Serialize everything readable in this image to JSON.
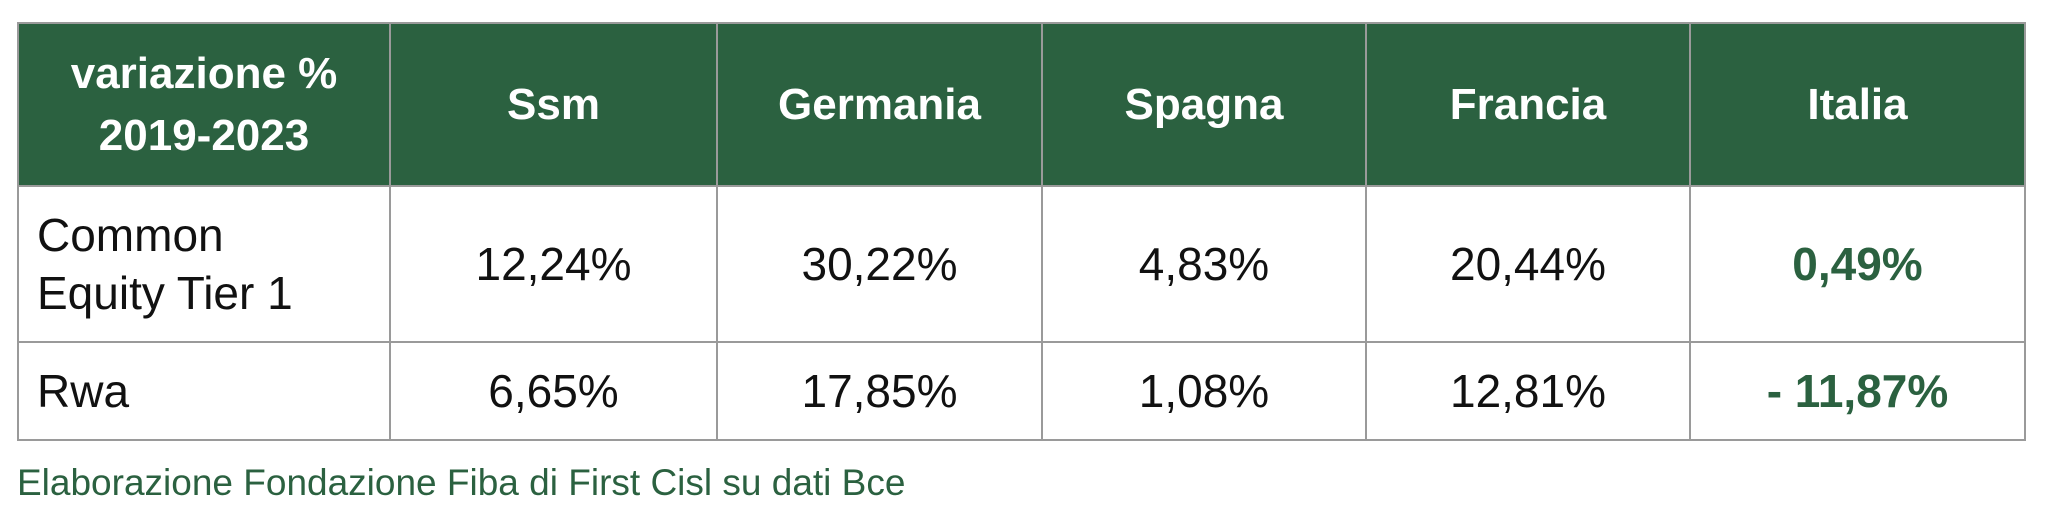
{
  "table": {
    "header": [
      "variazione % 2019-2023",
      "Ssm",
      "Germania",
      "Spagna",
      "Francia",
      "Italia"
    ],
    "rows": [
      [
        "Common Equity Tier 1",
        "12,24%",
        "30,22%",
        "4,83%",
        "20,44%",
        "0,49%"
      ],
      [
        "Rwa",
        "6,65%",
        "17,85%",
        "1,08%",
        "12,81%",
        "- 11,87%"
      ]
    ]
  },
  "footnote": "Elaborazione Fondazione Fiba di First Cisl su dati Bce"
}
